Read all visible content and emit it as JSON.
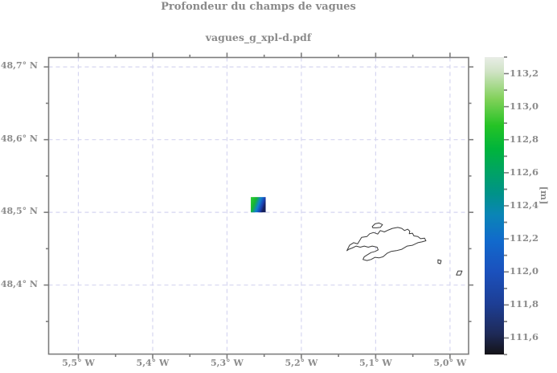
{
  "title": "Profondeur du champs de vagues",
  "subtitle": "vagues_g_xpl-d.pdf",
  "colors": {
    "background": "#ffffff",
    "axis": "#7d7d7d",
    "grid": "#d6d6f0",
    "text": "#8c8c8c",
    "coastline": "#3a3a3a"
  },
  "chart_data": {
    "type": "heatmap",
    "title": "Profondeur du champs de vagues",
    "subtitle": "vagues_g_xpl-d.pdf",
    "grid": {
      "style": "dashed",
      "on": true
    },
    "x_axis": {
      "unit": "degrees W",
      "range": [
        -5.54,
        -4.975
      ],
      "major_ticks": [
        {
          "value": -5.5,
          "label": "5,5° W"
        },
        {
          "value": -5.4,
          "label": "5,4° W"
        },
        {
          "value": -5.3,
          "label": "5,3° W"
        },
        {
          "value": -5.2,
          "label": "5,2° W"
        },
        {
          "value": -5.1,
          "label": "5,1° W"
        },
        {
          "value": -5.0,
          "label": "5,0° W"
        }
      ],
      "minor_step": 0.05
    },
    "y_axis": {
      "unit": "degrees N",
      "range": [
        48.305,
        48.713
      ],
      "major_ticks": [
        {
          "value": 48.7,
          "label": "48,7° N"
        },
        {
          "value": 48.6,
          "label": "48,6° N"
        },
        {
          "value": 48.5,
          "label": "48,5° N"
        },
        {
          "value": 48.4,
          "label": "48,4° N"
        }
      ],
      "minor_step": 0.05
    },
    "colorbar": {
      "unit": "[m]",
      "range": [
        111.5,
        113.3
      ],
      "major_ticks": [
        {
          "value": 113.2,
          "label": "113,2"
        },
        {
          "value": 113.0,
          "label": "113,0"
        },
        {
          "value": 112.8,
          "label": "112,8"
        },
        {
          "value": 112.6,
          "label": "112,6"
        },
        {
          "value": 112.4,
          "label": "112,4"
        },
        {
          "value": 112.2,
          "label": "112,2"
        },
        {
          "value": 112.0,
          "label": "112,0"
        },
        {
          "value": 111.8,
          "label": "111,8"
        },
        {
          "value": 111.6,
          "label": "111,6"
        }
      ],
      "minor_step": 0.1,
      "gradient_top_to_bottom": [
        {
          "at": 0.0,
          "color": "#e9ede7"
        },
        {
          "at": 0.05,
          "color": "#cfe3c4"
        },
        {
          "at": 0.14,
          "color": "#82d15a"
        },
        {
          "at": 0.23,
          "color": "#25c325"
        },
        {
          "at": 0.31,
          "color": "#00b43c"
        },
        {
          "at": 0.39,
          "color": "#00a266"
        },
        {
          "at": 0.46,
          "color": "#009289"
        },
        {
          "at": 0.53,
          "color": "#0a85b6"
        },
        {
          "at": 0.62,
          "color": "#1169cc"
        },
        {
          "at": 0.72,
          "color": "#1b51bd"
        },
        {
          "at": 0.83,
          "color": "#1d3e95"
        },
        {
          "at": 0.93,
          "color": "#1e2a58"
        },
        {
          "at": 1.0,
          "color": "#141317"
        }
      ]
    },
    "wave_patch": {
      "lon_min": -5.268,
      "lon_max": -5.248,
      "lat_min": 48.5,
      "lat_max": 48.521,
      "value_min": 111.6,
      "value_max": 113.1,
      "gradient": [
        {
          "at": 0.0,
          "color": "#2fd12f"
        },
        {
          "at": 0.35,
          "color": "#15b434"
        },
        {
          "at": 0.62,
          "color": "#0f7fd0"
        },
        {
          "at": 0.85,
          "color": "#1b3db0"
        },
        {
          "at": 1.0,
          "color": "#15205c"
        }
      ]
    },
    "coastline": {
      "main": [
        [
          -5.1387,
          48.4473
        ],
        [
          -5.1351,
          48.4547
        ],
        [
          -5.1297,
          48.4583
        ],
        [
          -5.1243,
          48.4566
        ],
        [
          -5.1189,
          48.4657
        ],
        [
          -5.1117,
          48.4668
        ],
        [
          -5.1081,
          48.4705
        ],
        [
          -5.1027,
          48.4723
        ],
        [
          -5.0973,
          48.4701
        ],
        [
          -5.0937,
          48.4749
        ],
        [
          -5.0883,
          48.4731
        ],
        [
          -5.0829,
          48.4757
        ],
        [
          -5.0775,
          48.4779
        ],
        [
          -5.0703,
          48.4793
        ],
        [
          -5.0649,
          48.4779
        ],
        [
          -5.0613,
          48.4749
        ],
        [
          -5.057,
          48.4768
        ],
        [
          -5.0541,
          48.4742
        ],
        [
          -5.0548,
          48.4705
        ],
        [
          -5.0505,
          48.4713
        ],
        [
          -5.0486,
          48.4676
        ],
        [
          -5.0432,
          48.4668
        ],
        [
          -5.0397,
          48.4638
        ],
        [
          -5.0343,
          48.4646
        ],
        [
          -5.0324,
          48.4609
        ],
        [
          -5.0378,
          48.4594
        ],
        [
          -5.0432,
          48.4583
        ],
        [
          -5.0505,
          48.4547
        ],
        [
          -5.0576,
          48.4536
        ],
        [
          -5.0649,
          48.4492
        ],
        [
          -5.0721,
          48.4473
        ],
        [
          -5.0793,
          48.4462
        ],
        [
          -5.0847,
          48.4436
        ],
        [
          -5.0901,
          48.4389
        ],
        [
          -5.0955,
          48.4373
        ],
        [
          -5.1009,
          48.4381
        ],
        [
          -5.1063,
          48.4351
        ],
        [
          -5.1117,
          48.4337
        ],
        [
          -5.1171,
          48.4351
        ],
        [
          -5.1154,
          48.4389
        ],
        [
          -5.1111,
          48.4417
        ],
        [
          -5.1063,
          48.4447
        ],
        [
          -5.1009,
          48.4462
        ],
        [
          -5.0966,
          48.4484
        ],
        [
          -5.0981,
          48.4521
        ],
        [
          -5.1046,
          48.4536
        ],
        [
          -5.11,
          48.4521
        ],
        [
          -5.1154,
          48.4536
        ],
        [
          -5.1208,
          48.4521
        ],
        [
          -5.1262,
          48.4536
        ],
        [
          -5.1316,
          48.451
        ],
        [
          -5.1362,
          48.4492
        ]
      ],
      "islets": [
        [
          [
            -5.1046,
            48.4804
          ],
          [
            -5.1009,
            48.4842
          ],
          [
            -5.0955,
            48.4853
          ],
          [
            -5.0908,
            48.4831
          ],
          [
            -5.0937,
            48.4793
          ],
          [
            -5.0991,
            48.4787
          ],
          [
            -5.1038,
            48.4787
          ]
        ],
        [
          [
            -5.0162,
            48.4348
          ],
          [
            -5.0119,
            48.4337
          ],
          [
            -5.013,
            48.4293
          ],
          [
            -5.0162,
            48.4304
          ]
        ],
        [
          [
            -4.9914,
            48.4138
          ],
          [
            -4.9892,
            48.4193
          ],
          [
            -4.9838,
            48.4193
          ],
          [
            -4.9859,
            48.4138
          ]
        ]
      ]
    }
  }
}
